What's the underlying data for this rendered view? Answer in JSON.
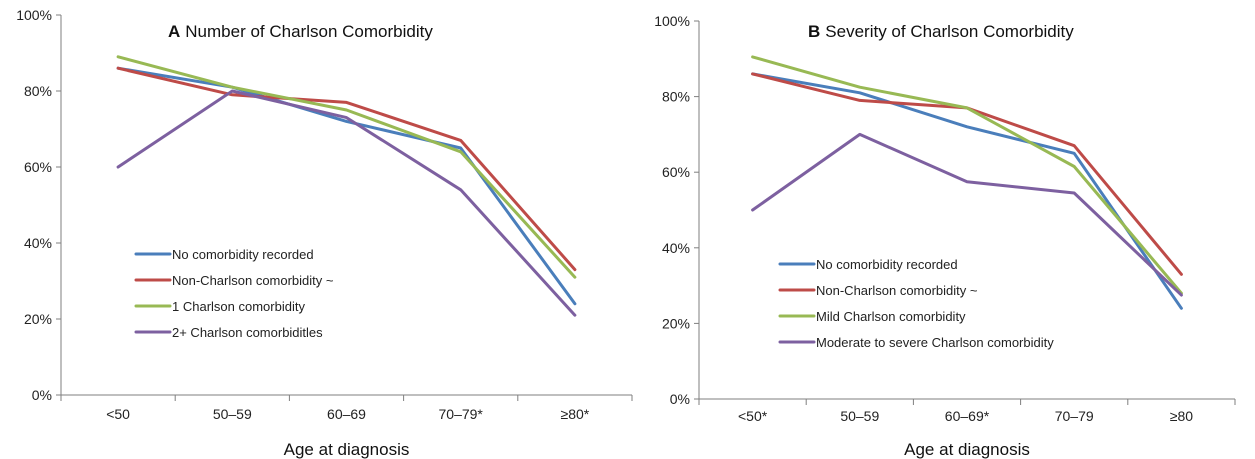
{
  "chart_data": [
    {
      "type": "line",
      "panel_letter": "A",
      "title": "Number of Charlson Comorbidity",
      "xlabel": "Age at diagnosis",
      "ylabel": "",
      "categories": [
        "<50",
        "50–59",
        "60–69",
        "70–79*",
        "≥80*"
      ],
      "ylim": [
        0,
        100
      ],
      "yticks": [
        "0%",
        "20%",
        "40%",
        "60%",
        "80%",
        "100%"
      ],
      "grid": false,
      "legend_position": "lower-left",
      "series": [
        {
          "name": "No comorbidity recorded",
          "color": "#4a7ebb",
          "values": [
            86,
            81,
            72,
            65,
            24
          ]
        },
        {
          "name": "Non-Charlson comorbidity ~",
          "color": "#be4b48",
          "values": [
            86,
            79,
            77,
            67,
            33
          ]
        },
        {
          "name": "1 Charlson comorbidity",
          "color": "#98b954",
          "values": [
            89,
            81,
            75,
            64,
            31
          ]
        },
        {
          "name": "2+ Charlson comorbiditles",
          "color": "#7d60a0",
          "values": [
            60,
            80,
            73,
            54,
            21
          ]
        }
      ]
    },
    {
      "type": "line",
      "panel_letter": "B",
      "title": "Severity of Charlson Comorbidity",
      "xlabel": "Age at diagnosis",
      "ylabel": "",
      "categories": [
        "<50*",
        "50–59",
        "60–69*",
        "70–79",
        "≥80"
      ],
      "ylim": [
        0,
        100
      ],
      "yticks": [
        "0%",
        "20%",
        "40%",
        "60%",
        "80%",
        "100%"
      ],
      "grid": false,
      "legend_position": "lower-left",
      "series": [
        {
          "name": "No comorbidity recorded",
          "color": "#4a7ebb",
          "values": [
            86,
            81,
            72,
            65,
            24
          ]
        },
        {
          "name": "Non-Charlson comorbidity ~",
          "color": "#be4b48",
          "values": [
            86,
            79,
            77,
            67,
            33
          ]
        },
        {
          "name": "Mild Charlson comorbidity",
          "color": "#98b954",
          "values": [
            90.5,
            82.5,
            77,
            61.5,
            28
          ]
        },
        {
          "name": "Moderate to severe Charlson comorbidity",
          "color": "#7d60a0",
          "values": [
            50,
            70,
            57.5,
            54.5,
            27.5
          ]
        }
      ]
    }
  ]
}
